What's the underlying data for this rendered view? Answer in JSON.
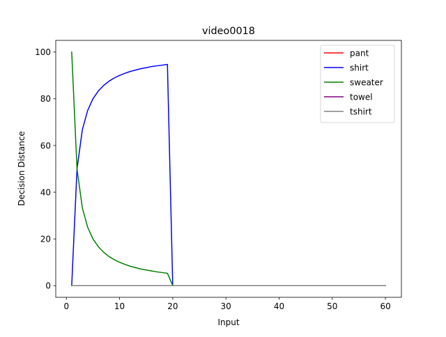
{
  "chart_data": {
    "type": "line",
    "title": "video0018",
    "xlabel": "Input",
    "ylabel": "Decision Distance",
    "xlim": [
      -2.0,
      63.0
    ],
    "ylim": [
      -5.0,
      105.0
    ],
    "xticks": [
      0,
      10,
      20,
      30,
      40,
      50,
      60
    ],
    "yticks": [
      0,
      20,
      40,
      60,
      80,
      100
    ],
    "grid": false,
    "legend_position": "top-right",
    "series": [
      {
        "name": "pant",
        "color": "#ff0000",
        "points": [
          [
            1,
            0
          ],
          [
            20,
            0
          ],
          [
            60,
            0
          ]
        ]
      },
      {
        "name": "shirt",
        "color": "#0000ff",
        "points": [
          [
            1,
            0
          ],
          [
            2,
            50
          ],
          [
            3,
            66.7
          ],
          [
            4,
            75
          ],
          [
            5,
            80
          ],
          [
            6,
            83.3
          ],
          [
            7,
            85.7
          ],
          [
            8,
            87.5
          ],
          [
            9,
            88.9
          ],
          [
            10,
            90
          ],
          [
            11,
            90.9
          ],
          [
            12,
            91.7
          ],
          [
            13,
            92.3
          ],
          [
            14,
            92.9
          ],
          [
            15,
            93.3
          ],
          [
            16,
            93.8
          ],
          [
            17,
            94.1
          ],
          [
            18,
            94.4
          ],
          [
            19,
            94.7
          ],
          [
            20,
            0
          ],
          [
            60,
            0
          ]
        ]
      },
      {
        "name": "sweater",
        "color": "#008000",
        "points": [
          [
            1,
            100
          ],
          [
            2,
            50
          ],
          [
            3,
            33.3
          ],
          [
            4,
            25
          ],
          [
            5,
            20
          ],
          [
            6,
            16.7
          ],
          [
            7,
            14.3
          ],
          [
            8,
            12.5
          ],
          [
            9,
            11.1
          ],
          [
            10,
            10
          ],
          [
            11,
            9.1
          ],
          [
            12,
            8.3
          ],
          [
            13,
            7.7
          ],
          [
            14,
            7.1
          ],
          [
            15,
            6.7
          ],
          [
            16,
            6.3
          ],
          [
            17,
            5.9
          ],
          [
            18,
            5.6
          ],
          [
            19,
            5.3
          ],
          [
            20,
            0
          ],
          [
            60,
            0
          ]
        ]
      },
      {
        "name": "towel",
        "color": "#800080",
        "points": [
          [
            1,
            0
          ],
          [
            20,
            0
          ],
          [
            60,
            0
          ]
        ]
      },
      {
        "name": "tshirt",
        "color": "#808080",
        "points": [
          [
            1,
            0
          ],
          [
            20,
            0
          ],
          [
            60,
            0
          ]
        ]
      }
    ]
  }
}
